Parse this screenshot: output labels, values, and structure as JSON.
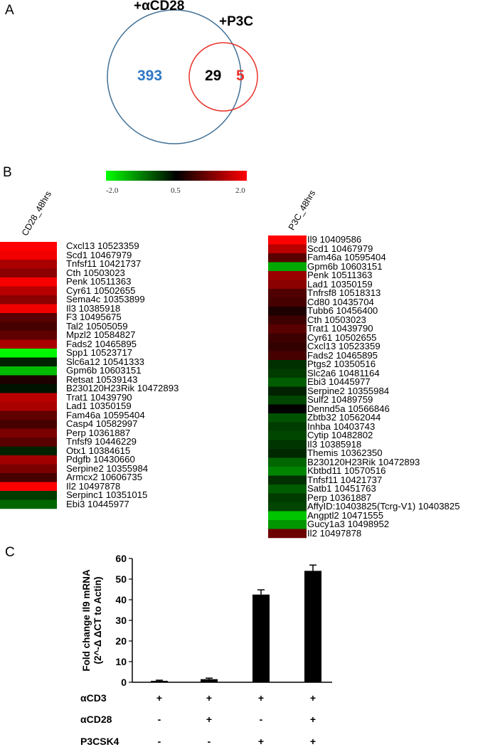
{
  "panels": {
    "a": "A",
    "b": "B",
    "c": "C"
  },
  "venn": {
    "set1_label": "+αCD28",
    "set2_label": "+P3C",
    "only_set1": "393",
    "overlap": "29",
    "only_set2": "5",
    "colors": {
      "set1": "#3f6f95",
      "set2": "#e8332a",
      "only_set1_text": "#2f78c4",
      "only_set2_text": "#e8332a"
    }
  },
  "heatmap": {
    "scale": {
      "min": "-2.0",
      "mid": "0.5",
      "max": "2.0",
      "min_color": "#00ff00",
      "mid_color": "#000000",
      "max_color": "#ff0000"
    },
    "left": {
      "column": "CD28_48hrs",
      "genes": [
        {
          "label": "Cxcl13 10523359",
          "value": 2.0
        },
        {
          "label": "Scd1 10467979",
          "value": 1.9
        },
        {
          "label": "Tnfsf11 10421737",
          "value": 1.4
        },
        {
          "label": "Cth 10503023",
          "value": 1.2
        },
        {
          "label": "Penk 10511363",
          "value": 1.95
        },
        {
          "label": "Cyr61 10502655",
          "value": 1.5
        },
        {
          "label": "Sema4c 10353899",
          "value": 1.2
        },
        {
          "label": "Il3 10385918",
          "value": 1.9
        },
        {
          "label": "F3 10495675",
          "value": 0.9
        },
        {
          "label": "Tal2 10505059",
          "value": 0.8
        },
        {
          "label": "Mpzl2 10584827",
          "value": 0.95
        },
        {
          "label": "Fads2 10465895",
          "value": 1.4
        },
        {
          "label": "Spp1 10523717",
          "value": -1.9
        },
        {
          "label": "Slc6a12 10541333",
          "value": 0.3
        },
        {
          "label": "Gpm6b 10603151",
          "value": -1.2
        },
        {
          "label": "Retsat 10539143",
          "value": 0.6
        },
        {
          "label": "B230120H23Rik 10472893",
          "value": 0.4
        },
        {
          "label": "Trat1 10439790",
          "value": 1.5
        },
        {
          "label": "Lad1 10350159",
          "value": 1.4
        },
        {
          "label": "Fam46a 10595404",
          "value": 0.95
        },
        {
          "label": "Casp4 10582997",
          "value": 0.8
        },
        {
          "label": "Perp 10361887",
          "value": 1.1
        },
        {
          "label": "Tnfsf9 10446229",
          "value": 0.9
        },
        {
          "label": "Otx1 10384615",
          "value": 0.3
        },
        {
          "label": "Pdgfb 10430660",
          "value": 1.35
        },
        {
          "label": "Serpine2 10355984",
          "value": 1.1
        },
        {
          "label": "Armcx2 10606735",
          "value": 0.8
        },
        {
          "label": "Il2 10497878",
          "value": 2.0
        },
        {
          "label": "Serpinc1 10351015",
          "value": 0.1
        },
        {
          "label": "Ebi3 10445977",
          "value": -0.3
        }
      ]
    },
    "right": {
      "column": "P3C_48hrs",
      "genes": [
        {
          "label": "Il9 10409586",
          "value": 2.0
        },
        {
          "label": "Scd1 10467979",
          "value": 1.5
        },
        {
          "label": "Fam46a 10595404",
          "value": 0.9
        },
        {
          "label": "Gpm6b 10603151",
          "value": -1.0
        },
        {
          "label": "Penk 10511363",
          "value": 1.3
        },
        {
          "label": "Lad1 10350159",
          "value": 1.2
        },
        {
          "label": "Tnfrsf8 10518313",
          "value": 0.85
        },
        {
          "label": "Cd80 10435704",
          "value": 0.8
        },
        {
          "label": "Tubb6 10456400",
          "value": 0.6
        },
        {
          "label": "Cth 10503023",
          "value": 0.75
        },
        {
          "label": "Trat1 10439790",
          "value": 0.9
        },
        {
          "label": "Cyr61 10502655",
          "value": 0.75
        },
        {
          "label": "Cxcl13 10523359",
          "value": 0.7
        },
        {
          "label": "Fads2 10465895",
          "value": 0.8
        },
        {
          "label": "Ptgs2 10350516",
          "value": 0.2
        },
        {
          "label": "Slc2a6 10481164",
          "value": 0.1
        },
        {
          "label": "Ebi3 10445977",
          "value": -0.2
        },
        {
          "label": "Serpine2 10355984",
          "value": 0.3
        },
        {
          "label": "Sulf2 10489759",
          "value": 0.0
        },
        {
          "label": "Dennd5a 10566846",
          "value": 0.5
        },
        {
          "label": "Zbtb32 10562044",
          "value": -0.1
        },
        {
          "label": "Inhba 10403743",
          "value": 0.1
        },
        {
          "label": "Cytip 10482802",
          "value": 0.0
        },
        {
          "label": "Il3 10385918",
          "value": 0.15
        },
        {
          "label": "Themis 10362350",
          "value": 0.25
        },
        {
          "label": "B230120H23Rik 10472893",
          "value": -0.3
        },
        {
          "label": "Kbtbd11 10570516",
          "value": -0.6
        },
        {
          "label": "Tnfsf11 10421737",
          "value": 0.2
        },
        {
          "label": "Satb1 10451763",
          "value": -0.2
        },
        {
          "label": "Perp 10361887",
          "value": 0.1
        },
        {
          "label": "AffyID:10403825(Tcrg-V1) 10403825",
          "value": 0.0
        },
        {
          "label": "Angptl2 10471555",
          "value": -1.3
        },
        {
          "label": "Gucy1a3 10498952",
          "value": -0.8
        },
        {
          "label": "Il2 10497878",
          "value": 1.0
        }
      ]
    }
  },
  "chart_data": {
    "type": "bar",
    "categories": [
      "1",
      "2",
      "3",
      "4"
    ],
    "values": [
      0.7,
      1.5,
      42.5,
      54
    ],
    "errors": [
      0.3,
      0.5,
      2.3,
      2.8
    ],
    "ylabel_line1": "Fold change Il9  mRNA",
    "ylabel_line2": "(2^-Δ ΔCT to Actin)",
    "ylim": [
      0,
      60
    ],
    "yticks": [
      "0",
      "10",
      "20",
      "30",
      "40",
      "50",
      "60"
    ],
    "treatments": [
      {
        "name": "αCD3",
        "signs": [
          "+",
          "+",
          "+",
          "+"
        ]
      },
      {
        "name": "αCD28",
        "signs": [
          "-",
          "+",
          "-",
          "+"
        ]
      },
      {
        "name": "P3CSK4",
        "signs": [
          "-",
          "-",
          "+",
          "+"
        ]
      }
    ],
    "bar_color": "#000000"
  }
}
